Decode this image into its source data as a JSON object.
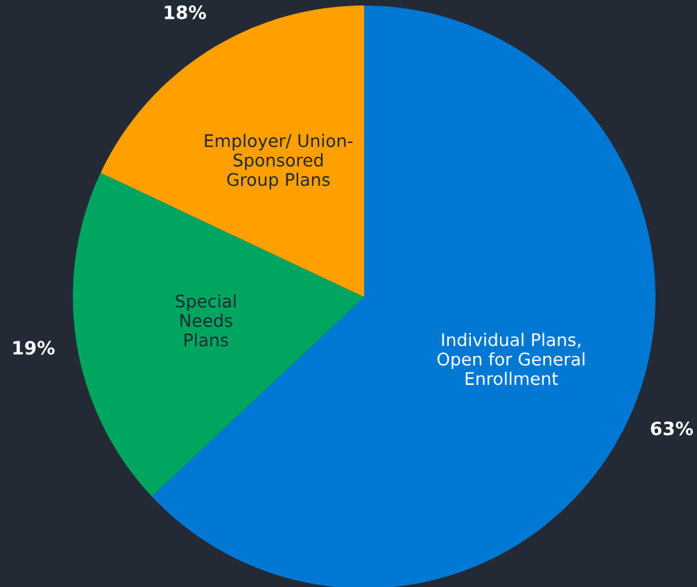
{
  "chart_data": {
    "type": "pie",
    "categories": [
      "Individual Plans,\nOpen for General\nEnrollment",
      "Special\nNeeds\nPlans",
      "Employer/ Union-\nSponsored\nGroup Plans"
    ],
    "values": [
      63,
      19,
      18
    ],
    "colors": [
      "#0078d4",
      "#00a65f",
      "#ffa000"
    ],
    "value_labels": [
      "63%",
      "19%",
      "18%"
    ]
  }
}
